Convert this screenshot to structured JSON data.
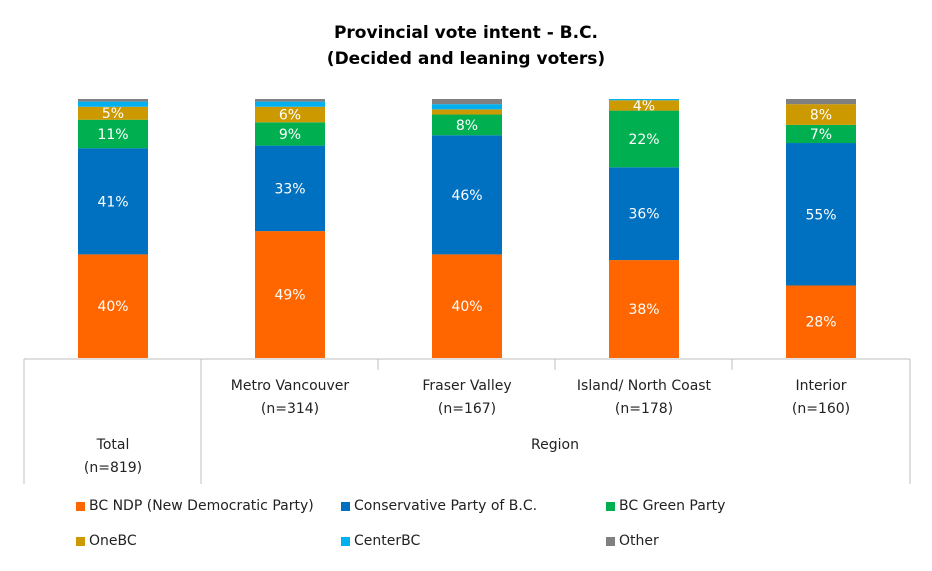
{
  "chart_data": {
    "type": "bar",
    "stacked": true,
    "title": "Provincial vote intent - B.C.",
    "subtitle": "(Decided and leaning voters)",
    "categories": [
      {
        "name": "Total",
        "n": "(n=819)",
        "group": ""
      },
      {
        "name": "Metro Vancouver",
        "n": "(n=314)",
        "group": "Region"
      },
      {
        "name": "Fraser Valley",
        "n": "(n=167)",
        "group": "Region"
      },
      {
        "name": "Island/ North Coast",
        "n": "(n=178)",
        "group": "Region"
      },
      {
        "name": "Interior",
        "n": "(n=160)",
        "group": "Region"
      }
    ],
    "group_label": "Region",
    "ylim": [
      0,
      100
    ],
    "series": [
      {
        "name": "BC NDP (New Democratic Party)",
        "color": "#FF6600",
        "values": [
          40,
          49,
          40,
          38,
          28
        ],
        "labels": [
          "40%",
          "49%",
          "40%",
          "38%",
          "28%"
        ]
      },
      {
        "name": "Conservative Party of B.C.",
        "color": "#0070C0",
        "values": [
          41,
          33,
          46,
          36,
          55
        ],
        "labels": [
          "41%",
          "33%",
          "46%",
          "36%",
          "55%"
        ]
      },
      {
        "name": "BC Green Party",
        "color": "#00B050",
        "values": [
          11,
          9,
          8,
          22,
          7
        ],
        "labels": [
          "11%",
          "9%",
          "8%",
          "22%",
          "7%"
        ]
      },
      {
        "name": "OneBC",
        "color": "#CC9900",
        "values": [
          5,
          6,
          2,
          4,
          8
        ],
        "labels": [
          "5%",
          "6%",
          "",
          "4%",
          "8%"
        ]
      },
      {
        "name": "CenterBC",
        "color": "#00B0F0",
        "values": [
          2,
          2,
          2,
          0.5,
          0
        ],
        "labels": [
          "",
          "",
          "",
          "",
          ""
        ]
      },
      {
        "name": "Other",
        "color": "#808080",
        "values": [
          1,
          1,
          2,
          0,
          2
        ],
        "labels": [
          "",
          "",
          "",
          "",
          ""
        ]
      }
    ]
  }
}
